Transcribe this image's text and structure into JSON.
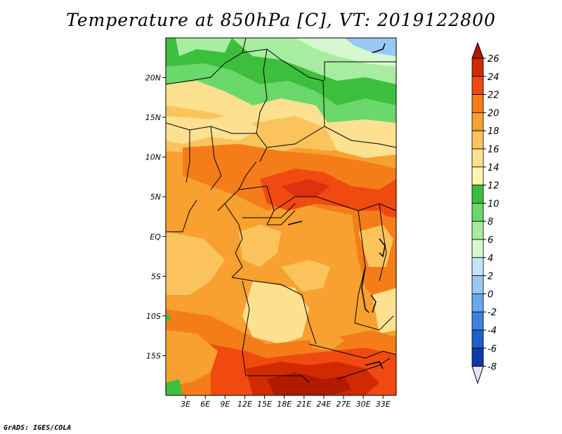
{
  "title": "Temperature at 850hPa [C], VT: 2019122800",
  "credit": "GrADS: IGES/COLA",
  "map": {
    "lon_range": [
      0,
      35
    ],
    "lat_range": [
      -20,
      25
    ],
    "lat_ticks": [
      {
        "value": 20,
        "label": "20N"
      },
      {
        "value": 15,
        "label": "15N"
      },
      {
        "value": 10,
        "label": "10N"
      },
      {
        "value": 5,
        "label": "5N"
      },
      {
        "value": 0,
        "label": "EQ"
      },
      {
        "value": -5,
        "label": "5S"
      },
      {
        "value": -10,
        "label": "10S"
      },
      {
        "value": -15,
        "label": "15S"
      }
    ],
    "lon_ticks": [
      {
        "value": 3,
        "label": "3E"
      },
      {
        "value": 6,
        "label": "6E"
      },
      {
        "value": 9,
        "label": "9E"
      },
      {
        "value": 12,
        "label": "12E"
      },
      {
        "value": 15,
        "label": "15E"
      },
      {
        "value": 18,
        "label": "18E"
      },
      {
        "value": 21,
        "label": "21E"
      },
      {
        "value": 24,
        "label": "24E"
      },
      {
        "value": 27,
        "label": "27E"
      },
      {
        "value": 30,
        "label": "30E"
      },
      {
        "value": 33,
        "label": "33E"
      }
    ]
  },
  "colorbar": {
    "levels": [
      {
        "label": "26",
        "color": "#d22a00"
      },
      {
        "label": "24",
        "color": "#f04a10"
      },
      {
        "label": "22",
        "color": "#f47d1a"
      },
      {
        "label": "20",
        "color": "#f8a030"
      },
      {
        "label": "18",
        "color": "#fbc35c"
      },
      {
        "label": "16",
        "color": "#fde090"
      },
      {
        "label": "14",
        "color": "#fff3b0"
      },
      {
        "label": "12",
        "color": "#3cbf3c"
      },
      {
        "label": "10",
        "color": "#6ad86a"
      },
      {
        "label": "8",
        "color": "#a8eca0"
      },
      {
        "label": "6",
        "color": "#d6f7d0"
      },
      {
        "label": "4",
        "color": "#c4e4fb"
      },
      {
        "label": "2",
        "color": "#98c8f5"
      },
      {
        "label": "0",
        "color": "#6aa8ee"
      },
      {
        "label": "-2",
        "color": "#3a84e0"
      },
      {
        "label": "-4",
        "color": "#1f5fcf"
      },
      {
        "label": "-6",
        "color": "#1038a8"
      },
      {
        "label": "-8",
        "color": "#0a1a78"
      }
    ],
    "top_color": "#b01a00",
    "bottom_color": "#e8e4f8"
  }
}
